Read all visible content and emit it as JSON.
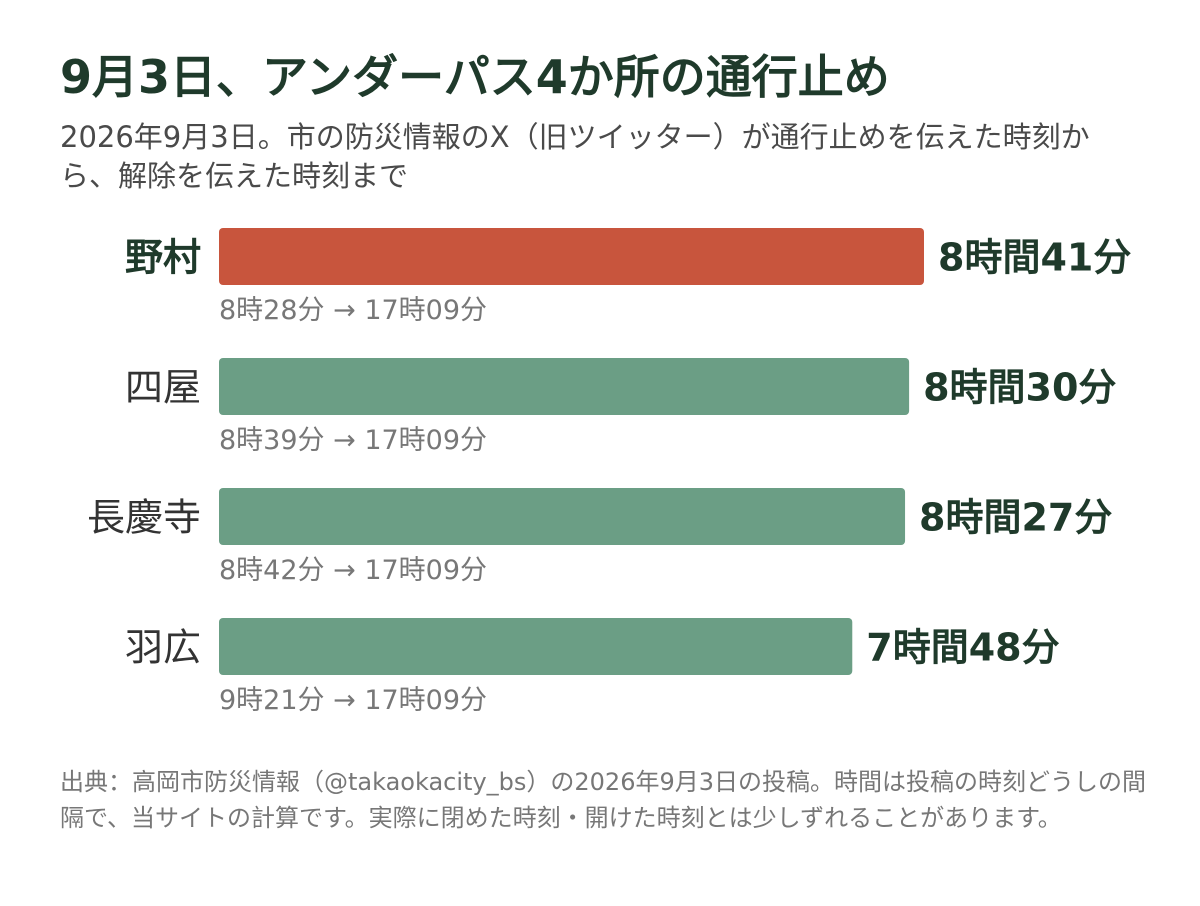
{
  "title": "9月3日、アンダーパス4か所の通行止め",
  "subtitle": "2026年9月3日。市の防災情報のX（旧ツイッター）が通行止めを伝えた時刻から、解除を伝えた時刻まで",
  "footer": "出典：高岡市防災情報（@takaokacity_bs）の2026年9月3日の投稿。時間は投稿の時刻どうしの間隔で、当サイトの計算です。実際に閉めた時刻・開けた時刻とは少しずれることがあります。",
  "colors": {
    "highlight": "#c8553d",
    "normal": "#6b9e85",
    "label_text": "#1f3a2b",
    "time_text": "#777777"
  },
  "chart_data": {
    "type": "bar",
    "orientation": "horizontal",
    "unit": "minutes",
    "categories": [
      "野村",
      "四屋",
      "長慶寺",
      "羽広"
    ],
    "values": [
      521,
      510,
      507,
      468
    ],
    "value_labels": [
      "8時間41分",
      "8時間30分",
      "8時間27分",
      "7時間48分"
    ],
    "time_ranges": [
      "8時28分 → 17時09分",
      "8時39分 → 17時09分",
      "8時42分 → 17時09分",
      "9時21分 → 17時09分"
    ],
    "highlight_index": 0,
    "grid": false,
    "legend": "none"
  }
}
